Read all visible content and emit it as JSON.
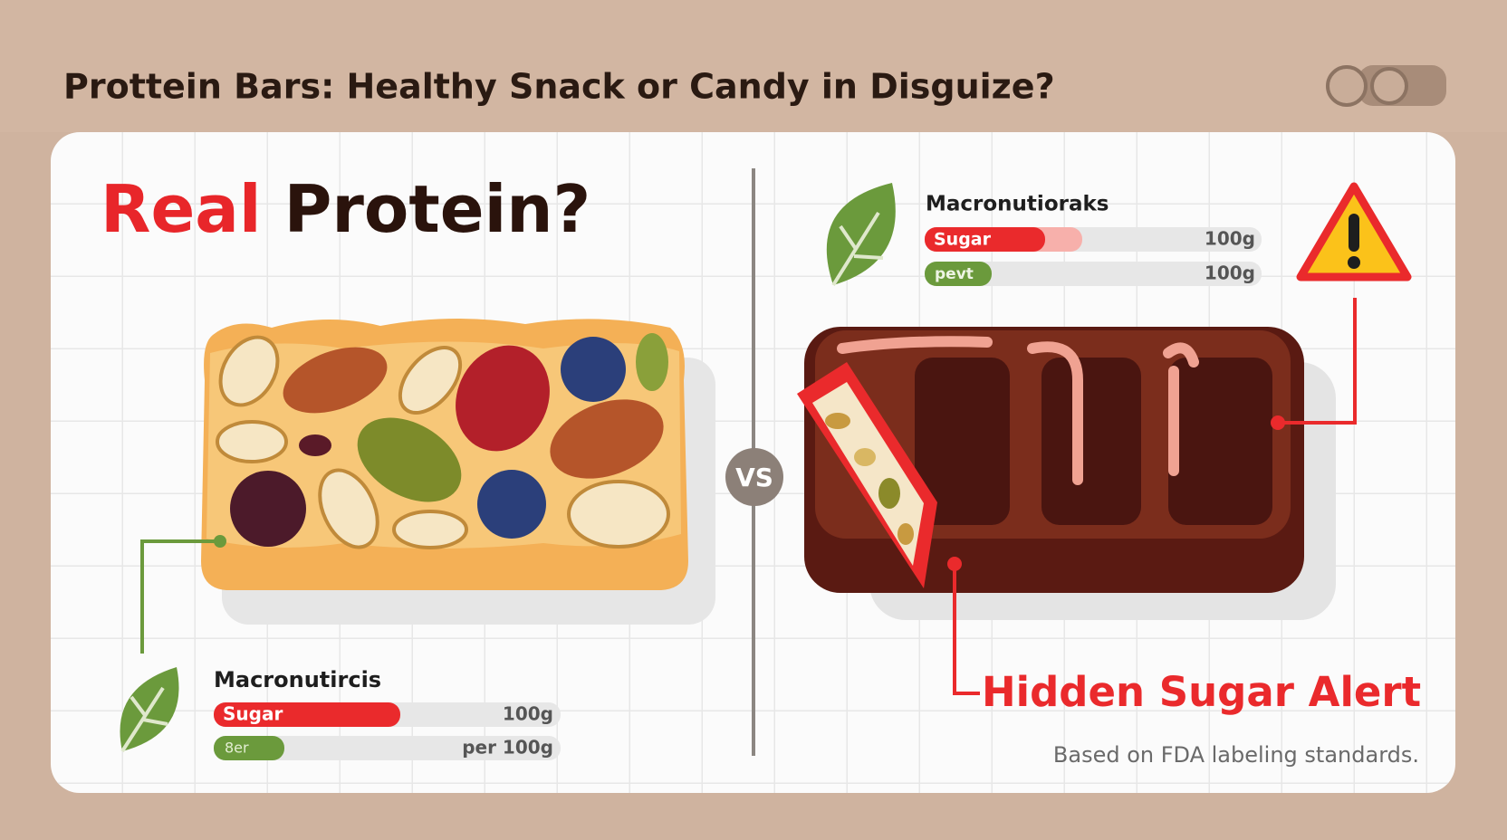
{
  "header": {
    "title": "Prottein Bars: Healthy Snack or Candy in Disguize?"
  },
  "left": {
    "heading_red": "Real",
    "heading_dark": "Protein?",
    "macros": {
      "title": "Macronutircis",
      "rows": [
        {
          "label": "Sugar",
          "value": "100g"
        },
        {
          "label": "8er",
          "value": "per 100g"
        }
      ]
    }
  },
  "divider": {
    "label": "VS"
  },
  "right": {
    "macros": {
      "title": "Macronutioraks",
      "rows": [
        {
          "label": "Sugar",
          "value": "100g"
        },
        {
          "label": "pevt",
          "value": "100g"
        }
      ]
    },
    "alert": "Hidden Sugar Alert",
    "footnote": "Based on FDA labeling standards."
  }
}
